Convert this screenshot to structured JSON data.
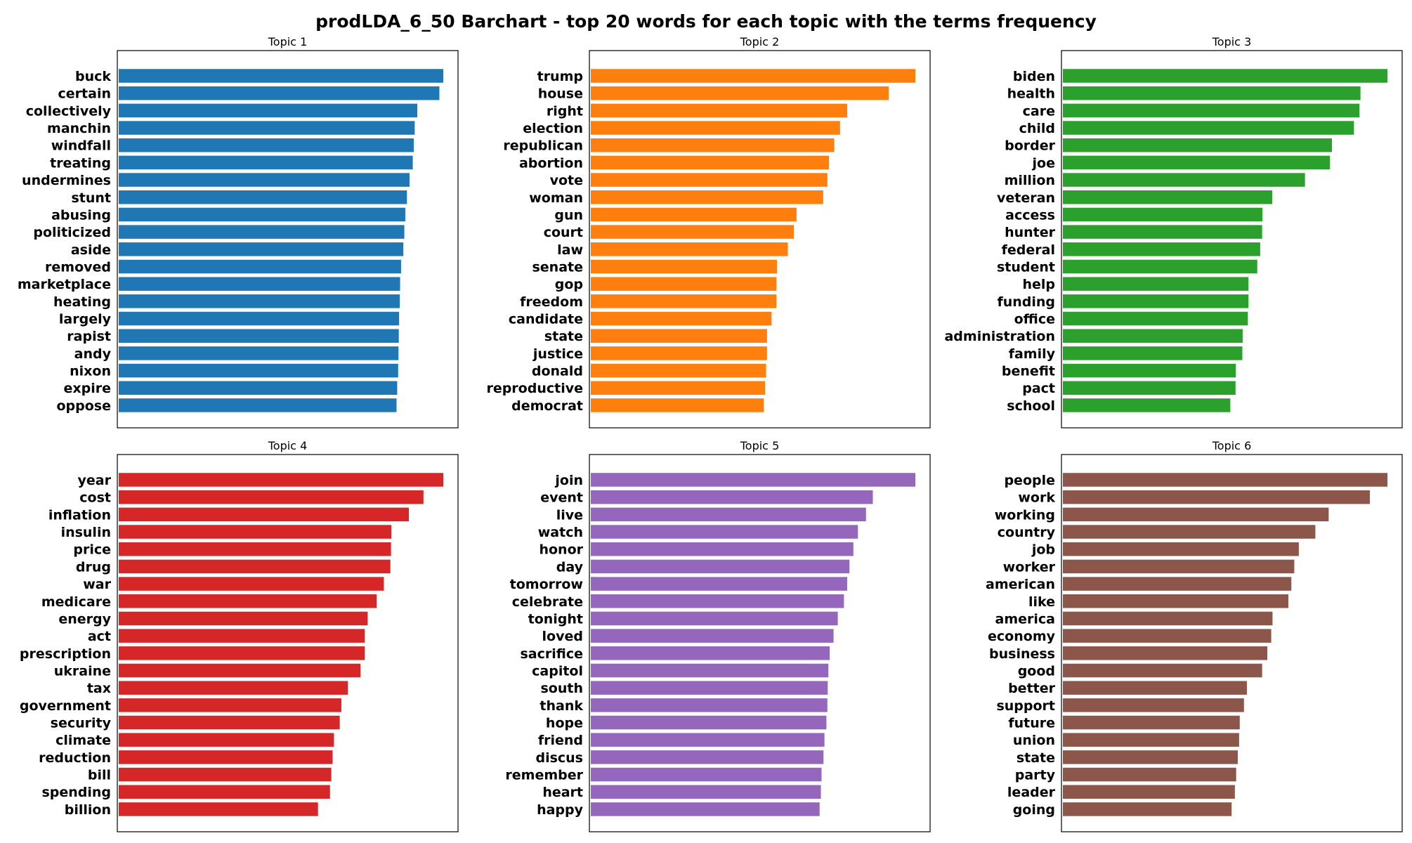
{
  "title": "prodLDA_6_50 Barchart - top 20 words for each topic with the terms frequency",
  "chart_data": [
    {
      "type": "bar",
      "orientation": "horizontal",
      "title": "Topic 1",
      "color": "#1f77b4",
      "xlim": [
        0,
        1
      ],
      "categories": [
        "buck",
        "certain",
        "collectively",
        "manchin",
        "windfall",
        "treating",
        "undermines",
        "stunt",
        "abusing",
        "politicized",
        "aside",
        "removed",
        "marketplace",
        "heating",
        "largely",
        "rapist",
        "andy",
        "nixon",
        "expire",
        "oppose"
      ],
      "values": [
        1.0,
        0.988,
        0.92,
        0.912,
        0.909,
        0.906,
        0.896,
        0.888,
        0.883,
        0.88,
        0.877,
        0.87,
        0.867,
        0.866,
        0.864,
        0.863,
        0.862,
        0.861,
        0.858,
        0.856
      ]
    },
    {
      "type": "bar",
      "orientation": "horizontal",
      "title": "Topic 2",
      "color": "#ff7f0e",
      "xlim": [
        0,
        1
      ],
      "categories": [
        "trump",
        "house",
        "right",
        "election",
        "republican",
        "abortion",
        "vote",
        "woman",
        "gun",
        "court",
        "law",
        "senate",
        "gop",
        "freedom",
        "candidate",
        "state",
        "justice",
        "donald",
        "reproductive",
        "democrat"
      ],
      "values": [
        1.0,
        0.918,
        0.79,
        0.768,
        0.75,
        0.734,
        0.729,
        0.716,
        0.634,
        0.626,
        0.607,
        0.574,
        0.572,
        0.572,
        0.557,
        0.543,
        0.543,
        0.54,
        0.537,
        0.533
      ]
    },
    {
      "type": "bar",
      "orientation": "horizontal",
      "title": "Topic 3",
      "color": "#2ca02c",
      "xlim": [
        0,
        1
      ],
      "categories": [
        "biden",
        "health",
        "care",
        "child",
        "border",
        "joe",
        "million",
        "veteran",
        "access",
        "hunter",
        "federal",
        "student",
        "help",
        "funding",
        "office",
        "administration",
        "family",
        "benefit",
        "pact",
        "school"
      ],
      "values": [
        1.0,
        0.917,
        0.914,
        0.897,
        0.829,
        0.823,
        0.746,
        0.645,
        0.615,
        0.614,
        0.608,
        0.599,
        0.572,
        0.572,
        0.57,
        0.554,
        0.553,
        0.533,
        0.532,
        0.516
      ]
    },
    {
      "type": "bar",
      "orientation": "horizontal",
      "title": "Topic 4",
      "color": "#d62728",
      "xlim": [
        0,
        1
      ],
      "categories": [
        "year",
        "cost",
        "inflation",
        "insulin",
        "price",
        "drug",
        "war",
        "medicare",
        "energy",
        "act",
        "prescription",
        "ukraine",
        "tax",
        "government",
        "security",
        "climate",
        "reduction",
        "bill",
        "spending",
        "billion"
      ],
      "values": [
        1.0,
        0.939,
        0.894,
        0.84,
        0.839,
        0.837,
        0.817,
        0.795,
        0.767,
        0.758,
        0.758,
        0.745,
        0.706,
        0.686,
        0.681,
        0.663,
        0.659,
        0.655,
        0.651,
        0.614
      ]
    },
    {
      "type": "bar",
      "orientation": "horizontal",
      "title": "Topic 5",
      "color": "#9467bd",
      "xlim": [
        0,
        1
      ],
      "categories": [
        "join",
        "event",
        "live",
        "watch",
        "honor",
        "day",
        "tomorrow",
        "celebrate",
        "tonight",
        "loved",
        "sacrifice",
        "capitol",
        "south",
        "thank",
        "hope",
        "friend",
        "discus",
        "remember",
        "heart",
        "happy"
      ],
      "values": [
        1.0,
        0.869,
        0.848,
        0.823,
        0.809,
        0.797,
        0.79,
        0.78,
        0.761,
        0.748,
        0.736,
        0.732,
        0.73,
        0.729,
        0.726,
        0.72,
        0.717,
        0.711,
        0.709,
        0.705
      ]
    },
    {
      "type": "bar",
      "orientation": "horizontal",
      "title": "Topic 6",
      "color": "#8c564b",
      "xlim": [
        0,
        1
      ],
      "categories": [
        "people",
        "work",
        "working",
        "country",
        "job",
        "worker",
        "american",
        "like",
        "america",
        "economy",
        "business",
        "good",
        "better",
        "support",
        "future",
        "union",
        "state",
        "party",
        "leader",
        "going"
      ],
      "values": [
        1.0,
        0.946,
        0.819,
        0.778,
        0.727,
        0.713,
        0.704,
        0.695,
        0.646,
        0.642,
        0.63,
        0.614,
        0.567,
        0.558,
        0.545,
        0.543,
        0.539,
        0.534,
        0.53,
        0.52
      ]
    }
  ]
}
